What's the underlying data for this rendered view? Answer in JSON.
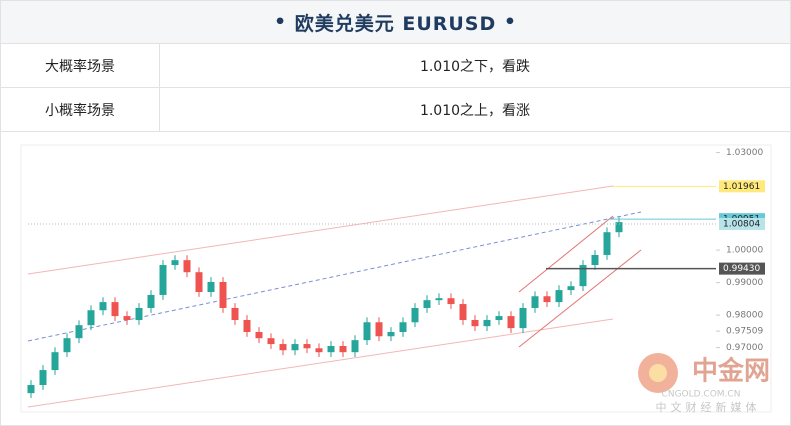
{
  "header": {
    "title": "欧美兑美元 EURUSD"
  },
  "table": {
    "rows": [
      [
        "大概率场景",
        "1.010之下，看跌"
      ],
      [
        "小概率场景",
        "1.010之上，看涨"
      ]
    ]
  },
  "chart_data": {
    "type": "candlestick",
    "open": [
      0.956,
      0.9585,
      0.9631,
      0.9686,
      0.9729,
      0.9769,
      0.9815,
      0.984,
      0.9797,
      0.9785,
      0.9822,
      0.9862,
      0.9954,
      0.9969,
      0.9932,
      0.9871,
      0.9902,
      0.9822,
      0.9785,
      0.9748,
      0.9729,
      0.9711,
      0.9692,
      0.9711,
      0.9698,
      0.9686,
      0.9705,
      0.9686,
      0.9723,
      0.9778,
      0.9735,
      0.9748,
      0.9778,
      0.9822,
      0.9846,
      0.9852,
      0.9834,
      0.9785,
      0.9766,
      0.9785,
      0.9797,
      0.976,
      0.9822,
      0.9858,
      0.984,
      0.9877,
      0.9889,
      0.9954,
      0.9985,
      1.0055
    ],
    "high": [
      0.96,
      0.9646,
      0.9701,
      0.9744,
      0.9784,
      0.983,
      0.9855,
      0.9855,
      0.9812,
      0.9837,
      0.9877,
      0.9969,
      0.9984,
      0.9984,
      0.9947,
      0.9917,
      0.9917,
      0.9837,
      0.98,
      0.9763,
      0.9744,
      0.9726,
      0.9726,
      0.9726,
      0.9713,
      0.972,
      0.972,
      0.9738,
      0.9793,
      0.9793,
      0.9763,
      0.9793,
      0.9837,
      0.9861,
      0.9867,
      0.9867,
      0.9849,
      0.98,
      0.98,
      0.9812,
      0.9812,
      0.9837,
      0.9873,
      0.9873,
      0.9892,
      0.9904,
      0.9969,
      1.0,
      1.007,
      1.0101
    ],
    "low": [
      0.9545,
      0.957,
      0.9616,
      0.9671,
      0.9714,
      0.9754,
      0.98,
      0.9782,
      0.977,
      0.977,
      0.9807,
      0.9847,
      0.9939,
      0.9917,
      0.9856,
      0.9856,
      0.9807,
      0.977,
      0.9733,
      0.9714,
      0.9696,
      0.9677,
      0.9677,
      0.9683,
      0.9671,
      0.9671,
      0.9671,
      0.9671,
      0.9708,
      0.972,
      0.972,
      0.9733,
      0.9763,
      0.9807,
      0.9831,
      0.9819,
      0.977,
      0.9751,
      0.9751,
      0.977,
      0.9745,
      0.9745,
      0.9807,
      0.9825,
      0.9825,
      0.9862,
      0.9874,
      0.9939,
      0.997,
      1.004
    ],
    "close": [
      0.9585,
      0.9631,
      0.9686,
      0.9729,
      0.9769,
      0.9815,
      0.984,
      0.9797,
      0.9785,
      0.9822,
      0.9862,
      0.9954,
      0.9969,
      0.9932,
      0.9871,
      0.9902,
      0.9822,
      0.9785,
      0.9748,
      0.9729,
      0.9711,
      0.9692,
      0.9711,
      0.9698,
      0.9686,
      0.9705,
      0.9686,
      0.9723,
      0.9778,
      0.9735,
      0.9748,
      0.9778,
      0.9822,
      0.9846,
      0.9852,
      0.9834,
      0.9785,
      0.9766,
      0.9785,
      0.9797,
      0.976,
      0.9822,
      0.9858,
      0.984,
      0.9877,
      0.9889,
      0.9954,
      0.9985,
      1.0055,
      1.0086
    ],
    "up_color": "#26a69a",
    "down_color": "#ef5350",
    "ylim": [
      0.9502,
      1.0314
    ],
    "yticks": [
      {
        "value": 1.03,
        "label": "1.03000"
      },
      {
        "value": 1.0,
        "label": "1.00000"
      },
      {
        "value": 0.99,
        "label": "0.99000"
      },
      {
        "value": 0.98,
        "label": "0.98000"
      },
      {
        "value": 0.97509,
        "label": "0.97509"
      },
      {
        "value": 0.97,
        "label": "0.97000"
      }
    ],
    "levels": [
      {
        "value": 1.01961,
        "label": "1.01961",
        "color": "#ffe97a"
      },
      {
        "value": 1.00951,
        "label": "1.00951",
        "color": "#67c8d6"
      },
      {
        "value": 1.00804,
        "label": "1.00804",
        "color": "#b7e4ea"
      },
      {
        "value": 0.9943,
        "label": "0.99430",
        "color": "#555555"
      }
    ]
  },
  "watermark": {
    "brand": "中金网",
    "domain": "CNGOLD.COM.CN",
    "slogan": "中文财经新媒体"
  }
}
